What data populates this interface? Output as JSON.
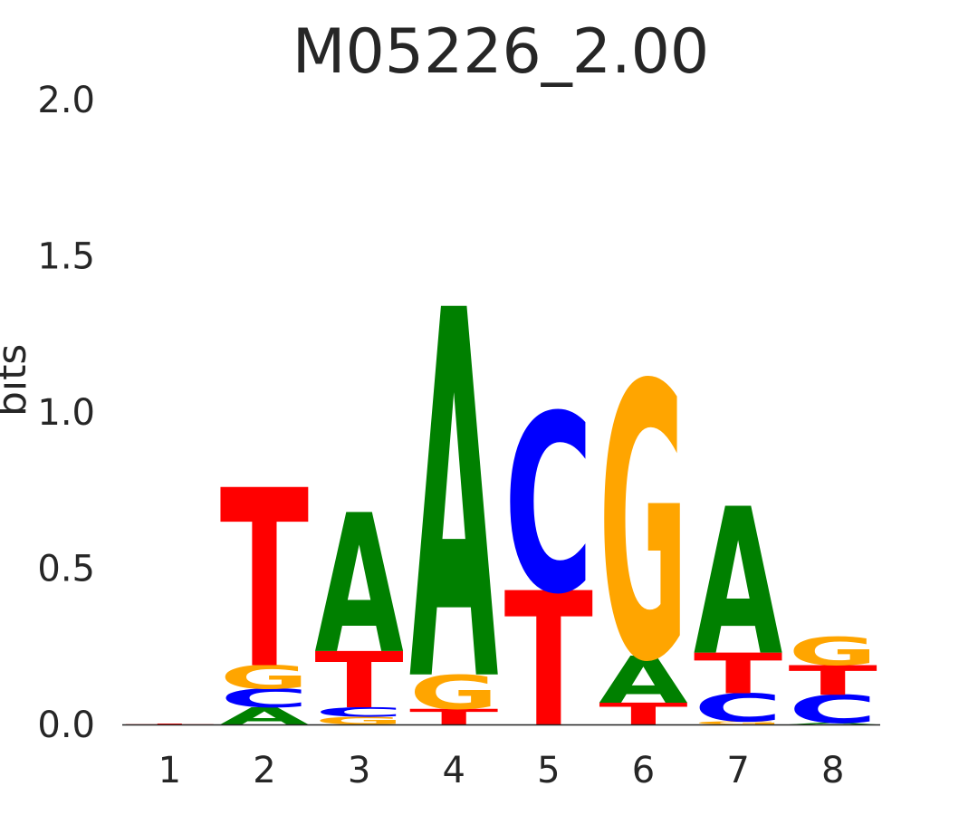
{
  "chart_data": {
    "type": "sequence-logo",
    "title": "M05226_2.00",
    "ylabel": "bits",
    "ylim": [
      0,
      2.0
    ],
    "yticks": [
      "0.0",
      "0.5",
      "1.0",
      "1.5",
      "2.0"
    ],
    "positions": [
      "1",
      "2",
      "3",
      "4",
      "5",
      "6",
      "7",
      "8"
    ],
    "colors": {
      "A": "#008000",
      "C": "#0000ff",
      "G": "#ffa500",
      "T": "#ff0000"
    },
    "stacks": [
      [
        {
          "base": "T",
          "height": 0.003
        }
      ],
      [
        {
          "base": "A",
          "height": 0.055
        },
        {
          "base": "C",
          "height": 0.06
        },
        {
          "base": "G",
          "height": 0.075
        },
        {
          "base": "T",
          "height": 0.57
        }
      ],
      [
        {
          "base": "G",
          "height": 0.025
        },
        {
          "base": "C",
          "height": 0.03
        },
        {
          "base": "T",
          "height": 0.18
        },
        {
          "base": "A",
          "height": 0.445
        }
      ],
      [
        {
          "base": "T",
          "height": 0.05
        },
        {
          "base": "G",
          "height": 0.11
        },
        {
          "base": "A",
          "height": 1.18
        }
      ],
      [
        {
          "base": "T",
          "height": 0.43
        },
        {
          "base": "C",
          "height": 0.57
        }
      ],
      [
        {
          "base": "T",
          "height": 0.07
        },
        {
          "base": "A",
          "height": 0.15
        },
        {
          "base": "G",
          "height": 0.88
        }
      ],
      [
        {
          "base": "G",
          "height": 0.01
        },
        {
          "base": "C",
          "height": 0.09
        },
        {
          "base": "T",
          "height": 0.13
        },
        {
          "base": "A",
          "height": 0.47
        }
      ],
      [
        {
          "base": "A",
          "height": 0.005
        },
        {
          "base": "C",
          "height": 0.09
        },
        {
          "base": "T",
          "height": 0.095
        },
        {
          "base": "G",
          "height": 0.09
        }
      ]
    ]
  }
}
